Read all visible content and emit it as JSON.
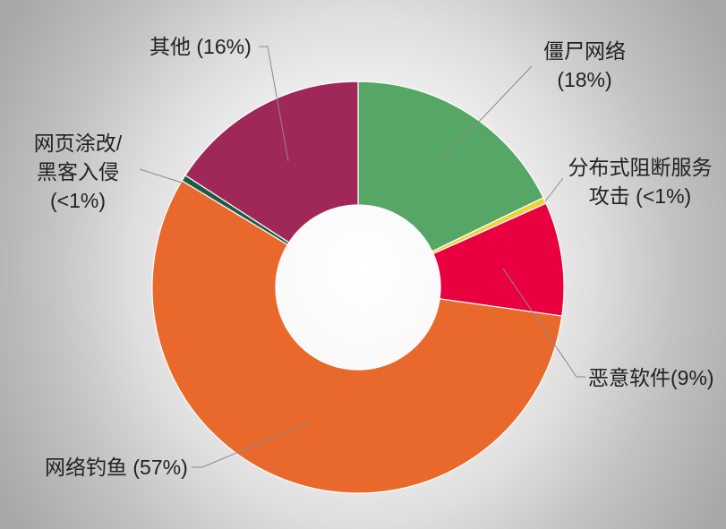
{
  "chart_data": {
    "type": "pie",
    "donut": true,
    "slices": [
      {
        "label": "僵尸网络\n(18%)",
        "value": 18,
        "color": "#56A765"
      },
      {
        "label": "分布式阻断服务\n攻击 (<1%)",
        "value": 0.5,
        "color": "#EDD23B"
      },
      {
        "label": "恶意软件(9%)",
        "value": 9,
        "color": "#E8003F"
      },
      {
        "label": "网络钓鱼 (57%)",
        "value": 57,
        "color": "#E9692C"
      },
      {
        "label": "网页涂改/\n黑客入侵\n(<1%)",
        "value": 0.5,
        "color": "#1E5A46"
      },
      {
        "label": "其他 (16%)",
        "value": 16,
        "color": "#A02859"
      }
    ]
  }
}
